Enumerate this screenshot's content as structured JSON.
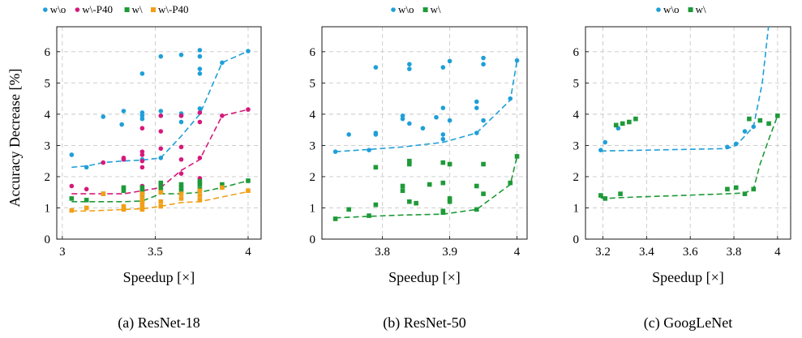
{
  "colors": {
    "wo": "#1f9fd8",
    "w": "#1e9a38",
    "wo_p40": "#d6197a",
    "w_p40": "#f0a019"
  },
  "ylabel": "Accuracy Decrease [%]",
  "chart_data": [
    {
      "type": "scatter",
      "caption": "(a) ResNet-18",
      "xlabel": "Speedup [×]",
      "xlim": [
        2.97,
        4.07
      ],
      "ylim": [
        0,
        6.8
      ],
      "xticks": [
        3,
        3.5,
        4
      ],
      "yticks": [
        0,
        1,
        2,
        3,
        4,
        5,
        6
      ],
      "grid": true,
      "legend_position": "top",
      "series": [
        {
          "name": "w\\o",
          "color_key": "wo",
          "marker": "circle",
          "points": [
            [
              3.05,
              2.7
            ],
            [
              3.13,
              2.3
            ],
            [
              3.22,
              3.92
            ],
            [
              3.32,
              3.67
            ],
            [
              3.33,
              4.1
            ],
            [
              3.43,
              3.95
            ],
            [
              3.43,
              4.05
            ],
            [
              3.43,
              3.85
            ],
            [
              3.43,
              5.3
            ],
            [
              3.43,
              2.55
            ],
            [
              3.53,
              3.95
            ],
            [
              3.53,
              4.1
            ],
            [
              3.53,
              5.85
            ],
            [
              3.53,
              2.6
            ],
            [
              3.64,
              3.75
            ],
            [
              3.64,
              3.95
            ],
            [
              3.64,
              4.02
            ],
            [
              3.64,
              5.9
            ],
            [
              3.74,
              5.3
            ],
            [
              3.74,
              5.45
            ],
            [
              3.74,
              5.85
            ],
            [
              3.74,
              6.05
            ],
            [
              3.74,
              4.18
            ],
            [
              3.86,
              5.65
            ],
            [
              4.0,
              6.02
            ]
          ],
          "trend": [
            [
              3.05,
              2.3
            ],
            [
              3.14,
              2.35
            ],
            [
              3.22,
              2.45
            ],
            [
              3.32,
              2.5
            ],
            [
              3.43,
              2.53
            ],
            [
              3.53,
              2.6
            ],
            [
              3.64,
              3.3
            ],
            [
              3.74,
              4.0
            ],
            [
              3.86,
              5.65
            ],
            [
              4.0,
              6.02
            ]
          ]
        },
        {
          "name": "w\\-P40",
          "color_key": "wo_p40",
          "marker": "circle",
          "points": [
            [
              3.05,
              1.7
            ],
            [
              3.13,
              1.6
            ],
            [
              3.22,
              2.45
            ],
            [
              3.33,
              2.55
            ],
            [
              3.33,
              2.6
            ],
            [
              3.43,
              1.7
            ],
            [
              3.43,
              2.3
            ],
            [
              3.43,
              2.5
            ],
            [
              3.43,
              2.7
            ],
            [
              3.43,
              2.8
            ],
            [
              3.43,
              3.55
            ],
            [
              3.53,
              1.75
            ],
            [
              3.53,
              2.9
            ],
            [
              3.53,
              3.45
            ],
            [
              3.53,
              3.95
            ],
            [
              3.64,
              2.1
            ],
            [
              3.64,
              2.55
            ],
            [
              3.64,
              2.95
            ],
            [
              3.64,
              3.95
            ],
            [
              3.74,
              1.95
            ],
            [
              3.74,
              2.6
            ],
            [
              3.74,
              3.75
            ],
            [
              3.74,
              4.05
            ],
            [
              3.86,
              3.95
            ],
            [
              4.0,
              4.15
            ]
          ],
          "trend": [
            [
              3.05,
              1.45
            ],
            [
              3.14,
              1.45
            ],
            [
              3.22,
              1.45
            ],
            [
              3.33,
              1.45
            ],
            [
              3.43,
              1.55
            ],
            [
              3.53,
              1.65
            ],
            [
              3.64,
              2.2
            ],
            [
              3.74,
              2.55
            ],
            [
              3.86,
              3.95
            ],
            [
              4.0,
              4.15
            ]
          ]
        },
        {
          "name": "w\\",
          "color_key": "w",
          "marker": "square",
          "points": [
            [
              3.05,
              1.3
            ],
            [
              3.13,
              1.25
            ],
            [
              3.22,
              1.45
            ],
            [
              3.33,
              1.55
            ],
            [
              3.33,
              1.65
            ],
            [
              3.43,
              1.25
            ],
            [
              3.43,
              1.4
            ],
            [
              3.43,
              1.5
            ],
            [
              3.43,
              1.55
            ],
            [
              3.43,
              1.65
            ],
            [
              3.53,
              1.55
            ],
            [
              3.53,
              1.65
            ],
            [
              3.53,
              1.8
            ],
            [
              3.64,
              1.55
            ],
            [
              3.64,
              1.65
            ],
            [
              3.64,
              1.75
            ],
            [
              3.74,
              1.6
            ],
            [
              3.74,
              1.75
            ],
            [
              3.74,
              1.85
            ],
            [
              3.86,
              1.75
            ],
            [
              4.0,
              1.87
            ]
          ],
          "trend": [
            [
              3.05,
              1.2
            ],
            [
              3.14,
              1.2
            ],
            [
              3.22,
              1.2
            ],
            [
              3.33,
              1.2
            ],
            [
              3.43,
              1.22
            ],
            [
              3.53,
              1.45
            ],
            [
              3.64,
              1.45
            ],
            [
              3.74,
              1.5
            ],
            [
              3.86,
              1.65
            ],
            [
              4.0,
              1.87
            ]
          ]
        },
        {
          "name": "w\\-P40",
          "color_key": "w_p40",
          "marker": "square",
          "points": [
            [
              3.05,
              0.92
            ],
            [
              3.13,
              1.0
            ],
            [
              3.22,
              1.45
            ],
            [
              3.33,
              0.95
            ],
            [
              3.33,
              1.05
            ],
            [
              3.43,
              0.95
            ],
            [
              3.43,
              1.0
            ],
            [
              3.43,
              1.1
            ],
            [
              3.43,
              1.2
            ],
            [
              3.43,
              1.3
            ],
            [
              3.43,
              1.45
            ],
            [
              3.53,
              1.05
            ],
            [
              3.53,
              1.2
            ],
            [
              3.53,
              1.5
            ],
            [
              3.64,
              1.3
            ],
            [
              3.64,
              1.45
            ],
            [
              3.74,
              1.25
            ],
            [
              3.74,
              1.4
            ],
            [
              3.74,
              1.55
            ],
            [
              3.86,
              1.65
            ],
            [
              4.0,
              1.55
            ]
          ],
          "trend": [
            [
              3.05,
              0.9
            ],
            [
              3.14,
              0.9
            ],
            [
              3.22,
              0.92
            ],
            [
              3.33,
              0.95
            ],
            [
              3.43,
              0.97
            ],
            [
              3.53,
              1.05
            ],
            [
              3.64,
              1.17
            ],
            [
              3.74,
              1.2
            ],
            [
              3.86,
              1.35
            ],
            [
              4.0,
              1.52
            ]
          ]
        }
      ]
    },
    {
      "type": "scatter",
      "caption": "(b) ResNet-50",
      "xlabel": "Speedup [×]",
      "xlim": [
        3.71,
        4.015
      ],
      "ylim": [
        0,
        6.8
      ],
      "xticks": [
        3.8,
        3.9,
        4
      ],
      "yticks": [
        0,
        1,
        2,
        3,
        4,
        5,
        6
      ],
      "grid": true,
      "legend_position": "top",
      "series": [
        {
          "name": "w\\o",
          "color_key": "wo",
          "marker": "circle",
          "points": [
            [
              3.73,
              2.8
            ],
            [
              3.75,
              3.35
            ],
            [
              3.78,
              2.85
            ],
            [
              3.79,
              3.4
            ],
            [
              3.79,
              3.35
            ],
            [
              3.79,
              5.5
            ],
            [
              3.83,
              3.85
            ],
            [
              3.83,
              3.95
            ],
            [
              3.84,
              5.6
            ],
            [
              3.84,
              5.45
            ],
            [
              3.84,
              3.7
            ],
            [
              3.86,
              3.55
            ],
            [
              3.88,
              3.9
            ],
            [
              3.89,
              3.2
            ],
            [
              3.89,
              3.35
            ],
            [
              3.89,
              4.2
            ],
            [
              3.89,
              5.5
            ],
            [
              3.9,
              5.7
            ],
            [
              3.9,
              3.8
            ],
            [
              3.94,
              3.4
            ],
            [
              3.94,
              4.2
            ],
            [
              3.94,
              4.4
            ],
            [
              3.95,
              5.8
            ],
            [
              3.95,
              5.6
            ],
            [
              3.95,
              3.8
            ],
            [
              3.99,
              4.5
            ],
            [
              4.0,
              5.72
            ]
          ],
          "trend": [
            [
              3.73,
              2.8
            ],
            [
              3.78,
              2.87
            ],
            [
              3.83,
              2.95
            ],
            [
              3.89,
              3.1
            ],
            [
              3.94,
              3.4
            ],
            [
              3.99,
              4.45
            ],
            [
              4.0,
              5.72
            ]
          ]
        },
        {
          "name": "w\\",
          "color_key": "w",
          "marker": "square",
          "points": [
            [
              3.73,
              0.65
            ],
            [
              3.75,
              0.95
            ],
            [
              3.78,
              0.75
            ],
            [
              3.79,
              1.1
            ],
            [
              3.79,
              2.3
            ],
            [
              3.83,
              1.7
            ],
            [
              3.83,
              1.55
            ],
            [
              3.84,
              1.2
            ],
            [
              3.84,
              2.4
            ],
            [
              3.84,
              2.5
            ],
            [
              3.85,
              1.15
            ],
            [
              3.87,
              1.75
            ],
            [
              3.89,
              0.85
            ],
            [
              3.89,
              0.9
            ],
            [
              3.89,
              1.8
            ],
            [
              3.89,
              2.45
            ],
            [
              3.9,
              1.2
            ],
            [
              3.9,
              1.3
            ],
            [
              3.9,
              2.4
            ],
            [
              3.94,
              0.95
            ],
            [
              3.94,
              1.7
            ],
            [
              3.95,
              1.45
            ],
            [
              3.95,
              2.4
            ],
            [
              3.99,
              1.8
            ],
            [
              4.0,
              2.65
            ]
          ],
          "trend": [
            [
              3.73,
              0.68
            ],
            [
              3.78,
              0.73
            ],
            [
              3.83,
              0.77
            ],
            [
              3.89,
              0.8
            ],
            [
              3.94,
              0.95
            ],
            [
              3.99,
              1.75
            ],
            [
              4.0,
              2.65
            ]
          ]
        }
      ]
    },
    {
      "type": "scatter",
      "caption": "(c) GoogLeNet",
      "xlabel": "Speedup [×]",
      "xlim": [
        3.12,
        4.06
      ],
      "ylim": [
        0,
        6.8
      ],
      "xticks": [
        3.2,
        3.4,
        3.6,
        3.8,
        4
      ],
      "yticks": [
        0,
        1,
        2,
        3,
        4,
        5,
        6
      ],
      "grid": true,
      "legend_position": "top",
      "series": [
        {
          "name": "w\\o",
          "color_key": "wo",
          "marker": "circle",
          "points": [
            [
              3.19,
              2.85
            ],
            [
              3.21,
              3.1
            ],
            [
              3.27,
              3.55
            ],
            [
              3.77,
              2.95
            ],
            [
              3.81,
              3.05
            ],
            [
              3.85,
              3.45
            ],
            [
              3.89,
              3.6
            ]
          ],
          "trend": [
            [
              3.19,
              2.82
            ],
            [
              3.77,
              2.9
            ],
            [
              3.81,
              3.0
            ],
            [
              3.85,
              3.3
            ],
            [
              3.89,
              3.6
            ],
            [
              3.93,
              5.0
            ],
            [
              3.96,
              6.9
            ]
          ]
        },
        {
          "name": "w\\",
          "color_key": "w",
          "marker": "square",
          "points": [
            [
              3.19,
              1.4
            ],
            [
              3.21,
              1.3
            ],
            [
              3.26,
              3.65
            ],
            [
              3.28,
              1.45
            ],
            [
              3.29,
              3.7
            ],
            [
              3.32,
              3.75
            ],
            [
              3.35,
              3.85
            ],
            [
              3.77,
              1.6
            ],
            [
              3.81,
              1.65
            ],
            [
              3.85,
              1.45
            ],
            [
              3.87,
              3.85
            ],
            [
              3.89,
              1.6
            ],
            [
              3.92,
              3.8
            ],
            [
              3.96,
              3.7
            ],
            [
              4.0,
              3.95
            ]
          ],
          "trend": [
            [
              3.19,
              1.32
            ],
            [
              3.21,
              1.3
            ],
            [
              3.28,
              1.33
            ],
            [
              3.77,
              1.45
            ],
            [
              3.85,
              1.48
            ],
            [
              3.89,
              1.6
            ],
            [
              3.92,
              2.4
            ],
            [
              3.96,
              3.2
            ],
            [
              4.0,
              3.95
            ]
          ]
        }
      ]
    }
  ]
}
